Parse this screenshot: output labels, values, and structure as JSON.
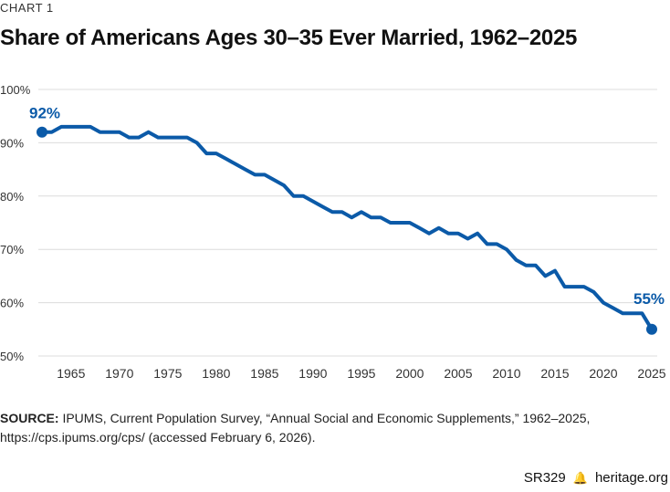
{
  "header": {
    "chart_label": "CHART 1",
    "title": "Share of Americans Ages 30–35 Ever Married, 1962–2025"
  },
  "source": {
    "label": "SOURCE:",
    "text": "IPUMS, Current Population Survey, “Annual Social and Economic Supplements,” 1962–2025, https://cps.ipums.org/cps/ (accessed February 6, 2026)."
  },
  "footer": {
    "code": "SR329",
    "icon": "liberty-bell-icon",
    "site": "heritage.org"
  },
  "colors": {
    "line": "#0b5aa8",
    "grid": "#dcdcdc",
    "label": "#0b5aa8"
  },
  "chart_data": {
    "type": "line",
    "title": "Share of Americans Ages 30–35 Ever Married, 1962–2025",
    "xlabel": "",
    "ylabel": "",
    "xlim": [
      1962,
      2025
    ],
    "ylim": [
      50,
      100
    ],
    "x_ticks": [
      1965,
      1970,
      1975,
      1980,
      1985,
      1990,
      1995,
      2000,
      2005,
      2010,
      2015,
      2020,
      2025
    ],
    "y_ticks": [
      50,
      60,
      70,
      80,
      90,
      100
    ],
    "y_tick_labels": [
      "50%",
      "60%",
      "70%",
      "80%",
      "90%",
      "100%"
    ],
    "grid": "horizontal",
    "x": [
      1962,
      1963,
      1964,
      1965,
      1966,
      1967,
      1968,
      1969,
      1970,
      1971,
      1972,
      1973,
      1974,
      1975,
      1976,
      1977,
      1978,
      1979,
      1980,
      1981,
      1982,
      1983,
      1984,
      1985,
      1986,
      1987,
      1988,
      1989,
      1990,
      1991,
      1992,
      1993,
      1994,
      1995,
      1996,
      1997,
      1998,
      1999,
      2000,
      2001,
      2002,
      2003,
      2004,
      2005,
      2006,
      2007,
      2008,
      2009,
      2010,
      2011,
      2012,
      2013,
      2014,
      2015,
      2016,
      2017,
      2018,
      2019,
      2020,
      2021,
      2022,
      2023,
      2024,
      2025
    ],
    "values": [
      92,
      92,
      93,
      93,
      93,
      93,
      92,
      92,
      92,
      91,
      91,
      92,
      91,
      91,
      91,
      91,
      90,
      88,
      88,
      87,
      86,
      85,
      84,
      84,
      83,
      82,
      80,
      80,
      79,
      78,
      77,
      77,
      76,
      77,
      76,
      76,
      75,
      75,
      75,
      74,
      73,
      74,
      73,
      73,
      72,
      73,
      71,
      71,
      70,
      68,
      67,
      67,
      65,
      66,
      63,
      63,
      63,
      62,
      60,
      59,
      58,
      58,
      58,
      55
    ],
    "annotations": [
      {
        "x": 1962,
        "y": 92,
        "text": "92%"
      },
      {
        "x": 2025,
        "y": 55,
        "text": "55%"
      }
    ]
  }
}
